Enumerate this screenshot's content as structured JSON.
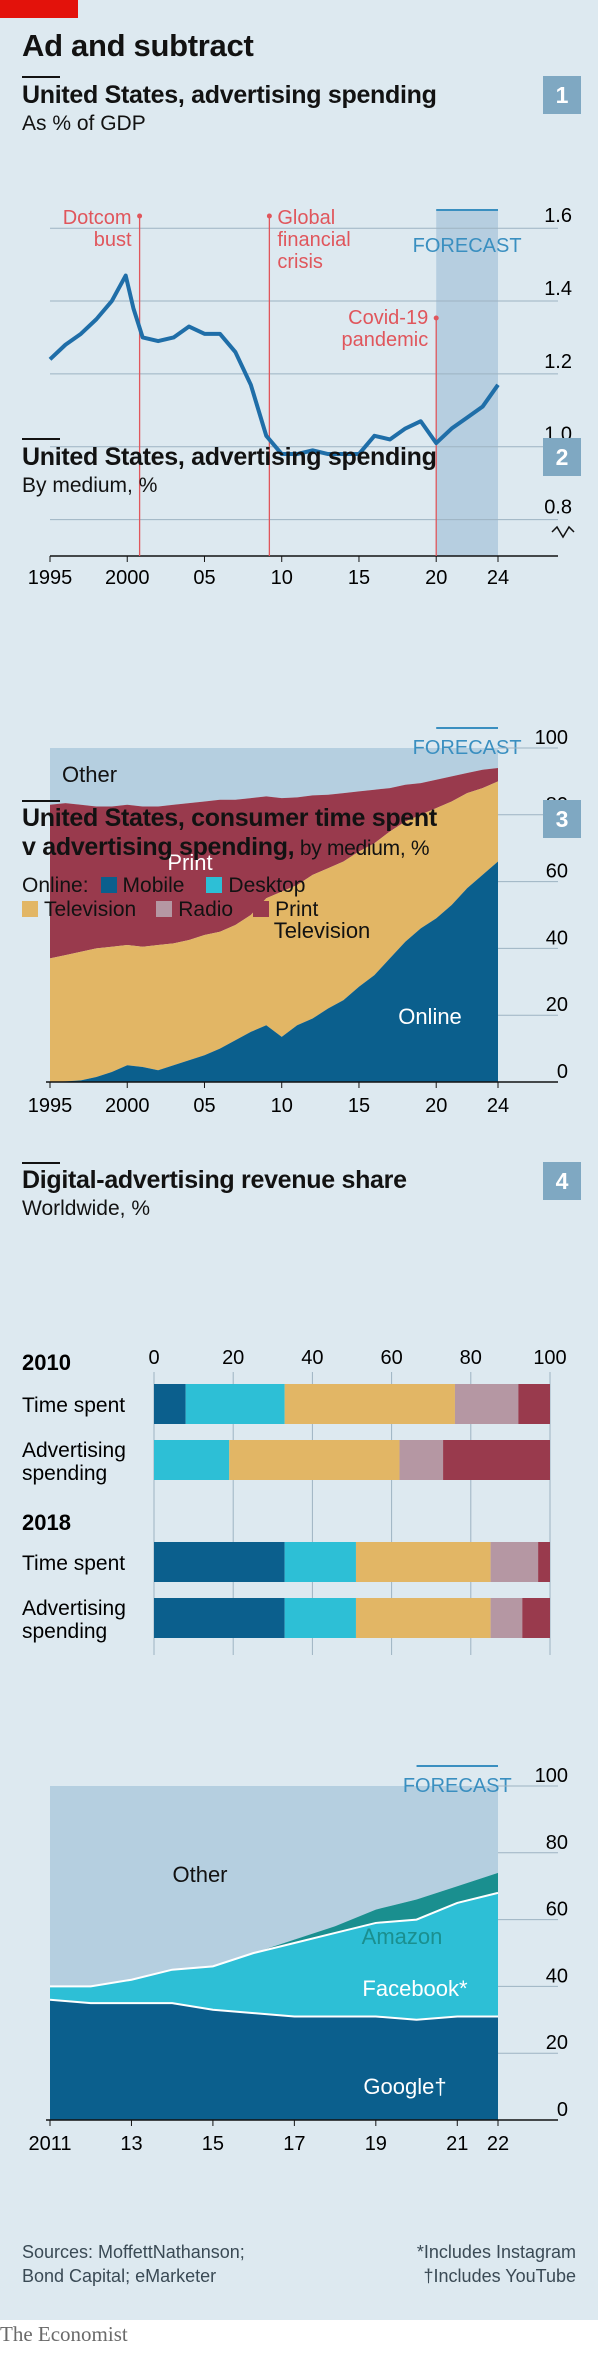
{
  "headline": "Ad and subtract",
  "brand": "The Economist",
  "colors": {
    "background": "#dde9f0",
    "red": "#e3120b",
    "line": "#1f6ea8",
    "online": "#0b5f8d",
    "television": "#e2b665",
    "print": "#993a4d",
    "other": "#b5cfe0",
    "mobile": "#0b5f8d",
    "desktop": "#2dbfd6",
    "radio": "#b597a3",
    "amazon": "#1a8f8f",
    "facebook": "#2dbfd6",
    "google": "#0b5f8d",
    "forecast": "#b6cee0",
    "annotation": "#e0565c",
    "forecast_text": "#3a8fc0"
  },
  "footer": {
    "sources_line1": "Sources: MoffettNathanson;",
    "sources_line2": "Bond Capital; eMarketer",
    "note1": "*Includes Instagram",
    "note2": "†Includes YouTube"
  },
  "chart_data": [
    {
      "type": "line",
      "number": "1",
      "title": "United States, advertising spending",
      "subtitle": "As % of GDP",
      "forecast_label": "FORECAST",
      "forecast_from": 2020,
      "annotations": [
        {
          "x": 2000.8,
          "label1": "Dotcom",
          "label2": "bust",
          "label3": ""
        },
        {
          "x": 2009.2,
          "label1": "Global",
          "label2": "financial",
          "label3": "crisis"
        },
        {
          "x": 2020,
          "label1": "Covid-19",
          "label2": "pandemic",
          "label3": ""
        }
      ],
      "xlim": [
        1995,
        2024
      ],
      "ylim": [
        0.7,
        1.65
      ],
      "yticks": [
        0.8,
        1.0,
        1.2,
        1.4,
        1.6
      ],
      "ytick_labels": [
        "0.8",
        "1.0",
        "1.2",
        "1.4",
        "1.6"
      ],
      "xticks": [
        1995,
        2000,
        2005,
        2010,
        2015,
        2020,
        2024
      ],
      "xtick_labels": [
        "1995",
        "2000",
        "05",
        "10",
        "15",
        "20",
        "24"
      ],
      "x": [
        1995,
        1996,
        1997,
        1998,
        1999,
        1999.9,
        2000.4,
        2001,
        2002,
        2003,
        2004,
        2005,
        2006,
        2007,
        2008,
        2009,
        2010,
        2011,
        2012,
        2013,
        2014,
        2015,
        2016,
        2017,
        2018,
        2019,
        2020,
        2021,
        2022,
        2023,
        2024
      ],
      "series": [
        {
          "values": [
            1.24,
            1.28,
            1.31,
            1.35,
            1.4,
            1.47,
            1.38,
            1.3,
            1.29,
            1.3,
            1.33,
            1.31,
            1.31,
            1.26,
            1.17,
            1.03,
            0.98,
            0.98,
            0.99,
            0.98,
            0.98,
            0.98,
            1.03,
            1.02,
            1.05,
            1.07,
            1.01,
            1.05,
            1.08,
            1.11,
            1.17
          ]
        }
      ]
    },
    {
      "type": "area",
      "number": "2",
      "title": "United States, advertising spending",
      "subtitle": "By medium, %",
      "forecast_label": "FORECAST",
      "forecast_from": 2020,
      "xlim": [
        1995,
        2024
      ],
      "ylim": [
        0,
        100
      ],
      "yticks": [
        0,
        20,
        40,
        60,
        80,
        100
      ],
      "xticks": [
        1995,
        2000,
        2005,
        2010,
        2015,
        2020,
        2024
      ],
      "xtick_labels": [
        "1995",
        "2000",
        "05",
        "10",
        "15",
        "20",
        "24"
      ],
      "x": [
        1995,
        1996,
        1997,
        1998,
        1999,
        2000,
        2001,
        2002,
        2003,
        2004,
        2005,
        2006,
        2007,
        2008,
        2009,
        2010,
        2011,
        2012,
        2013,
        2014,
        2015,
        2016,
        2017,
        2018,
        2019,
        2020,
        2021,
        2022,
        2023,
        2024
      ],
      "series": [
        {
          "name": "Online",
          "values": [
            0,
            0.2,
            0.5,
            1.5,
            3,
            5,
            4.5,
            3.5,
            5,
            6.5,
            8,
            10,
            12.5,
            15,
            17,
            13.5,
            17,
            19,
            22,
            24.5,
            28.5,
            32,
            37,
            42,
            46,
            49,
            53,
            58,
            62,
            66
          ]
        },
        {
          "name": "Television",
          "values": [
            37,
            38,
            39,
            40,
            40.5,
            41,
            40.5,
            41,
            41.5,
            42.5,
            44,
            45,
            47,
            50,
            55,
            57,
            59,
            62,
            64,
            66,
            69,
            71.5,
            75,
            78,
            80,
            82,
            84,
            86.5,
            88,
            90
          ]
        },
        {
          "name": "Print",
          "values": [
            83,
            83.5,
            83,
            82.5,
            82.5,
            83,
            82.5,
            82.5,
            83,
            83.5,
            84,
            84.5,
            84.5,
            85,
            85.5,
            85,
            85.2,
            85.8,
            86,
            86.5,
            87,
            87.5,
            88,
            89,
            89.5,
            90.5,
            91.5,
            92.5,
            93.5,
            94
          ]
        },
        {
          "name": "Other",
          "values": [
            100,
            100,
            100,
            100,
            100,
            100,
            100,
            100,
            100,
            100,
            100,
            100,
            100,
            100,
            100,
            100,
            100,
            100,
            100,
            100,
            100,
            100,
            100,
            100,
            100,
            100,
            100,
            100,
            100,
            100
          ]
        }
      ]
    },
    {
      "type": "bar",
      "number": "3",
      "title_line1": "United States, consumer time spent",
      "title_line2": "v advertising spending,",
      "title_suffix": " by medium, %",
      "legend_online": "Online:",
      "legend": [
        "Mobile",
        "Desktop",
        "Television",
        "Radio",
        "Print"
      ],
      "xticks": [
        0,
        20,
        40,
        60,
        80,
        100
      ],
      "groups": [
        {
          "year": "2010",
          "rows": [
            {
              "label1": "Time spent",
              "label2": "",
              "values": [
                8,
                25,
                43,
                16,
                8
              ]
            },
            {
              "label1": "Advertising",
              "label2": "spending",
              "values": [
                0,
                19,
                43,
                11,
                27
              ]
            }
          ]
        },
        {
          "year": "2018",
          "rows": [
            {
              "label1": "Time spent",
              "label2": "",
              "values": [
                33,
                18,
                34,
                12,
                3
              ]
            },
            {
              "label1": "Advertising",
              "label2": "spending",
              "values": [
                33,
                18,
                34,
                8,
                7
              ]
            }
          ]
        }
      ]
    },
    {
      "type": "area",
      "number": "4",
      "title": "Digital-advertising revenue share",
      "subtitle": "Worldwide, %",
      "forecast_label": "FORECAST",
      "forecast_from": 2020,
      "xlim": [
        2011,
        2022
      ],
      "ylim": [
        0,
        100
      ],
      "yticks": [
        0,
        20,
        40,
        60,
        80,
        100
      ],
      "xticks": [
        2011,
        2013,
        2015,
        2017,
        2019,
        2021,
        2022
      ],
      "xtick_labels": [
        "2011",
        "13",
        "15",
        "17",
        "19",
        "21",
        "22"
      ],
      "x": [
        2011,
        2012,
        2013,
        2014,
        2015,
        2016,
        2017,
        2018,
        2019,
        2020,
        2021,
        2022
      ],
      "series": [
        {
          "name": "Google†",
          "values": [
            36,
            35,
            35,
            35,
            33,
            32,
            31,
            31,
            31,
            30,
            31,
            31
          ]
        },
        {
          "name": "Facebook*",
          "values": [
            40,
            40,
            42,
            45,
            46,
            50,
            53,
            56,
            59,
            60,
            65,
            68
          ]
        },
        {
          "name": "Amazon",
          "values": [
            40,
            40,
            42,
            45,
            46,
            50,
            54,
            58,
            63,
            66,
            70,
            74
          ]
        },
        {
          "name": "Other",
          "values": [
            100,
            100,
            100,
            100,
            100,
            100,
            100,
            100,
            100,
            100,
            100,
            100
          ]
        }
      ]
    }
  ]
}
